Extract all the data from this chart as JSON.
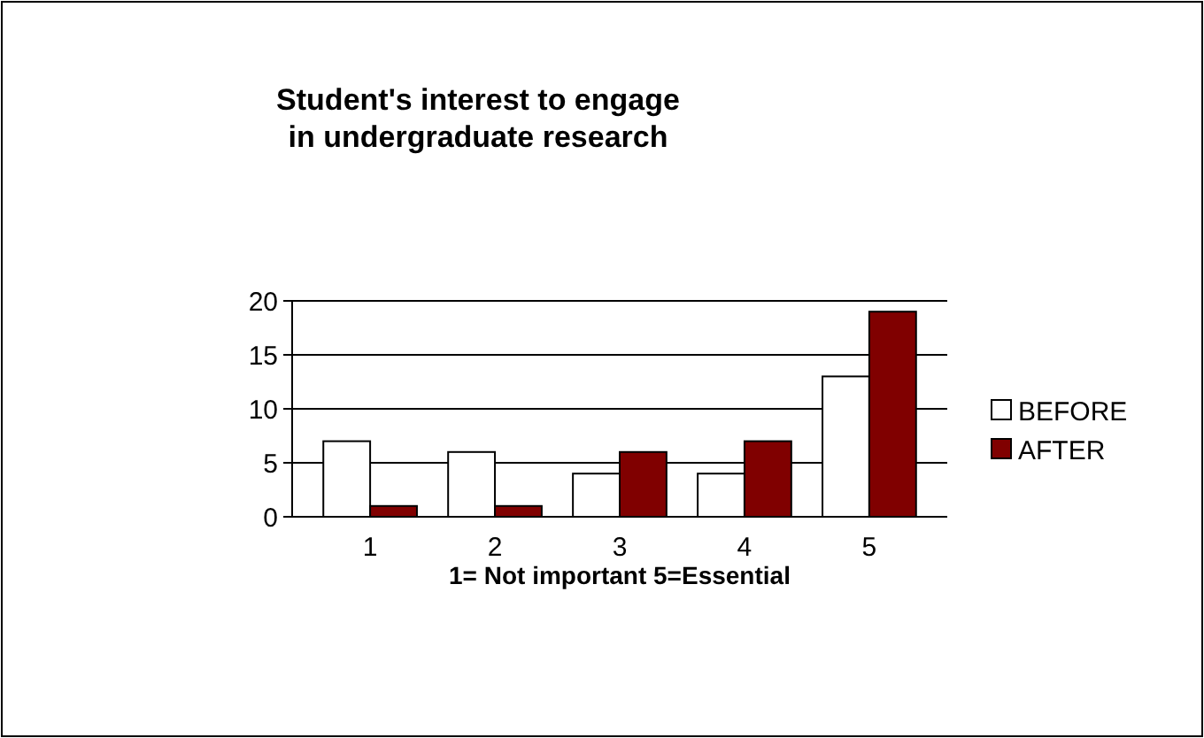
{
  "chart_data": {
    "type": "bar",
    "title": "Student's interest to engage in undergraduate research",
    "xlabel": "1= Not important   5=Essential",
    "categories": [
      "1",
      "2",
      "3",
      "4",
      "5"
    ],
    "series": [
      {
        "name": "BEFORE",
        "color": "#ffffff",
        "values": [
          7,
          6,
          4,
          4,
          13
        ]
      },
      {
        "name": "AFTER",
        "color": "#800000",
        "values": [
          1,
          1,
          6,
          7,
          19
        ]
      }
    ],
    "ylim": [
      0,
      20
    ],
    "yticks": [
      0,
      5,
      10,
      15,
      20
    ],
    "grid": "y",
    "legend": "right"
  }
}
